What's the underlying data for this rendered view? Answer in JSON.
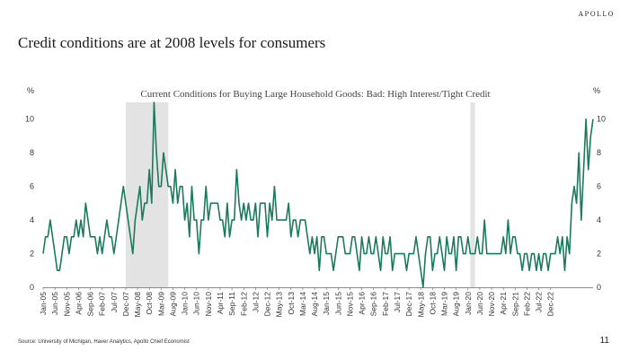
{
  "brand": "APOLLO",
  "headline": "Credit conditions are at 2008 levels for consumers",
  "source": "Source: University of Michigan, Haver Analytics, Apollo Chief Economist",
  "page_number": "11",
  "chart_data": {
    "type": "line",
    "title": "Current Conditions for Buying Large Household Goods: Bad: High Interest/Tight Credit",
    "ylabel_left": "%",
    "ylabel_right": "%",
    "ylim": [
      0,
      11
    ],
    "yticks": [
      0,
      2,
      4,
      6,
      8,
      10
    ],
    "grid": false,
    "line_color": "#1a7a5e",
    "shade_color": "#e3e3e3",
    "recessions": [
      {
        "start": "Dec-07",
        "end": "Jun-09"
      },
      {
        "start": "Feb-20",
        "end": "Apr-20"
      }
    ],
    "tick_labels": [
      "Jan-05",
      "Jun-05",
      "Nov-05",
      "Apr-06",
      "Sep-06",
      "Feb-07",
      "Jul-07",
      "Dec-07",
      "May-08",
      "Oct-08",
      "Mar-09",
      "Aug-09",
      "Jan-10",
      "Jun-10",
      "Nov-10",
      "Apr-11",
      "Sep-11",
      "Feb-12",
      "Jul-12",
      "Dec-12",
      "May-13",
      "Oct-13",
      "Mar-14",
      "Aug-14",
      "Jan-15",
      "Jun-15",
      "Nov-15",
      "Apr-16",
      "Sep-16",
      "Feb-17",
      "Jul-17",
      "Dec-17",
      "May-18",
      "Oct-18",
      "Mar-19",
      "Aug-19",
      "Jan-20",
      "Jun-20",
      "Nov-20",
      "Apr-21",
      "Sep-21",
      "Feb-22",
      "Jul-22",
      "Dec-22"
    ],
    "series": [
      {
        "start": "Jan-05",
        "values": [
          2,
          3,
          3,
          4,
          3,
          2,
          1,
          1,
          2,
          3,
          3,
          2,
          3,
          3,
          4,
          3,
          4,
          3,
          5,
          4,
          3,
          3,
          3,
          2,
          3,
          2,
          3,
          4,
          3,
          3,
          2,
          3,
          4,
          5,
          6,
          5,
          4,
          3,
          2,
          4,
          5,
          6,
          4,
          5,
          5,
          7,
          5,
          11,
          8,
          6,
          6,
          8,
          7,
          6,
          6,
          5,
          7,
          5,
          6,
          6,
          4,
          5,
          3,
          6,
          4,
          4,
          2,
          4,
          4,
          6,
          4,
          5,
          5,
          5,
          5,
          4,
          4,
          3,
          5,
          3,
          4,
          4,
          7,
          5,
          4,
          5,
          4,
          5,
          4,
          4,
          5,
          3,
          5,
          5,
          5,
          3,
          5,
          4,
          6,
          4,
          4,
          4,
          4,
          4,
          5,
          3,
          4,
          4,
          3,
          4,
          4,
          4,
          3,
          2,
          3,
          2,
          3,
          1,
          3,
          3,
          2,
          2,
          2,
          1,
          2,
          3,
          3,
          3,
          2,
          2,
          2,
          3,
          3,
          2,
          1,
          3,
          2,
          2,
          3,
          2,
          2,
          3,
          2,
          1,
          3,
          2,
          2,
          3,
          1,
          2,
          2,
          2,
          2,
          2,
          1,
          2,
          2,
          2,
          3,
          2,
          1,
          0,
          2,
          3,
          3,
          1,
          2,
          2,
          3,
          2,
          1,
          3,
          2,
          2,
          3,
          1,
          3,
          3,
          2,
          2,
          3,
          2,
          2,
          2,
          3,
          2,
          2,
          4,
          2,
          2,
          2,
          2,
          2,
          2,
          2,
          3,
          2,
          4,
          2,
          3,
          3,
          2,
          2,
          1,
          2,
          2,
          1,
          2,
          2,
          1,
          2,
          1,
          2,
          2,
          1,
          2,
          2,
          2,
          3,
          2,
          3,
          1,
          3,
          2,
          5,
          6,
          5,
          8,
          4,
          7,
          10,
          7,
          9,
          10
        ]
      }
    ]
  }
}
